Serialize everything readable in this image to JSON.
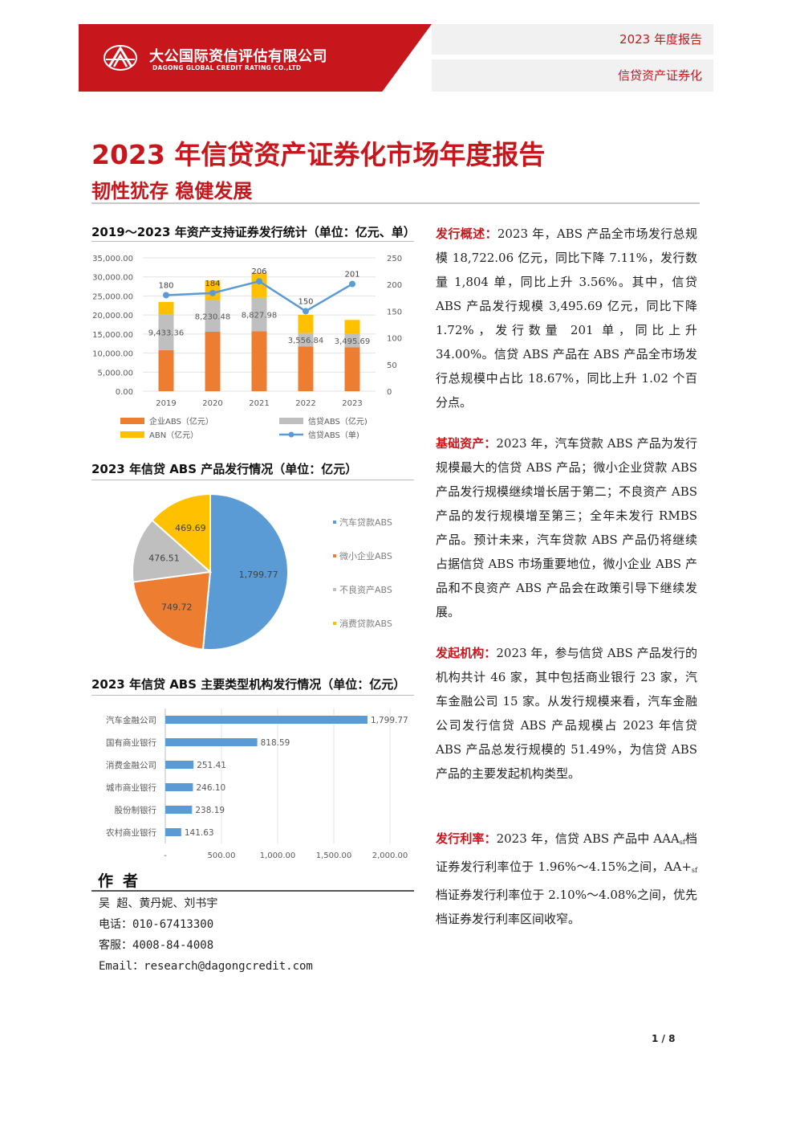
{
  "header": {
    "company_cn": "大公国际资信评估有限公司",
    "company_en": "DAGONG GLOBAL CREDIT RATING CO.,LTD",
    "report_type": "2023 年度报告",
    "category": "信贷资产证券化",
    "brand_color": "#c8161d"
  },
  "title": "2023 年信贷资产证券化市场年度报告",
  "subtitle": "韧性犹存  稳健发展",
  "sections": {
    "chart1_title": "2019～2023 年资产支持证券发行统计（单位：亿元、单）",
    "chart2_title": "2023 年信贷 ABS 产品发行情况（单位：亿元）",
    "chart3_title": "2023 年信贷 ABS 主要类型机构发行情况（单位：亿元）"
  },
  "chart_data": [
    {
      "type": "bar",
      "stacked": true,
      "categories": [
        "2019",
        "2020",
        "2021",
        "2022",
        "2023"
      ],
      "series": [
        {
          "name": "企业ABS（亿元）",
          "values": [
            10800,
            15600,
            15700,
            11700,
            11500
          ],
          "color": "#ed7d31"
        },
        {
          "name": "信贷ABS（亿元)",
          "values": [
            9433.36,
            8230.48,
            8827.98,
            3556.84,
            3495.69
          ],
          "color": "#bfbfbf",
          "labels": [
            "9,433.36",
            "8,230.48",
            "8,827.98",
            "3,556.84",
            "3,495.69"
          ]
        },
        {
          "name": "ABN（亿元）",
          "values": [
            3200,
            5200,
            6600,
            4800,
            3700
          ],
          "color": "#ffc000"
        },
        {
          "name": "信贷ABS（单)",
          "type": "line",
          "axis": "right",
          "values": [
            180,
            184,
            206,
            150,
            201
          ],
          "color": "#5b9bd5",
          "labels": [
            "180",
            "184",
            "206",
            "150",
            "201"
          ]
        }
      ],
      "y_ticks": [
        "35,000.00",
        "30,000.00",
        "25,000.00",
        "20,000.00",
        "15,000.00",
        "10,000.00",
        "5,000.00",
        "0.00"
      ],
      "ylim": [
        0,
        35000
      ],
      "y2_ticks": [
        "250",
        "200",
        "150",
        "100",
        "50",
        "0"
      ],
      "y2lim": [
        0,
        250
      ],
      "grid": true,
      "legend": "bottom"
    },
    {
      "type": "pie",
      "slices": [
        {
          "name": "汽车贷款ABS",
          "value": 1799.77,
          "label": "1,799.77",
          "color": "#5b9bd5"
        },
        {
          "name": "微小企业ABS",
          "value": 749.72,
          "label": "749.72",
          "color": "#ed7d31"
        },
        {
          "name": "不良资产ABS",
          "value": 476.51,
          "label": "476.51",
          "color": "#bfbfbf"
        },
        {
          "name": "消费贷款ABS",
          "value": 469.69,
          "label": "469.69",
          "color": "#ffc000"
        }
      ],
      "legend": "right"
    },
    {
      "type": "bar",
      "orientation": "horizontal",
      "categories": [
        "汽车金融公司",
        "国有商业银行",
        "消费金融公司",
        "城市商业银行",
        "股份制银行",
        "农村商业银行"
      ],
      "values": [
        1799.77,
        818.59,
        251.41,
        246.1,
        238.19,
        141.63
      ],
      "labels": [
        "1,799.77",
        "818.59",
        "251.41",
        "246.10",
        "238.19",
        "141.63"
      ],
      "x_ticks": [
        "-",
        "500.00",
        "1,000.00",
        "1,500.00",
        "2,000.00"
      ],
      "xlim": [
        0,
        2000
      ],
      "color": "#5b9bd5",
      "grid": true
    }
  ],
  "paragraphs": [
    {
      "lead": "发行概述：",
      "body": "2023 年，ABS 产品全市场发行总规模 18,722.06 亿元，同比下降 7.11%，发行数量 1,804 单，同比上升 3.56%。其中，信贷 ABS 产品发行规模 3,495.69 亿元，同比下降 1.72%，发行数量 201 单，同比上升 34.00%。信贷 ABS 产品在 ABS 产品全市场发行总规模中占比 18.67%，同比上升 1.02 个百分点。"
    },
    {
      "lead": "基础资产：",
      "body": "2023 年，汽车贷款 ABS 产品为发行规模最大的信贷 ABS 产品；微小企业贷款 ABS 产品发行规模继续增长居于第二；不良资产 ABS 产品的发行规模增至第三；全年未发行 RMBS 产品。预计未来，汽车贷款 ABS 产品仍将继续占据信贷 ABS 市场重要地位，微小企业 ABS 产品和不良资产 ABS 产品会在政策引导下继续发展。"
    },
    {
      "lead": "发起机构：",
      "body": "2023 年，参与信贷 ABS 产品发行的机构共计 46 家，其中包括商业银行 23 家，汽车金融公司 15 家。从发行规模来看，汽车金融公司发行信贷 ABS 产品规模占 2023 年信贷 ABS 产品总发行规模的 51.49%，为信贷 ABS 产品的主要发起机构类型。"
    },
    {
      "lead": "发行利率：",
      "body_a": "2023 年，信贷 ABS 产品中 AAA",
      "sub_a": "sf",
      "body_b": "档证券发行利率位于 1.96%～4.15%之间，AA+",
      "sub_b": "sf",
      "body_c": " 档证券发行利率位于 2.10%～4.08%之间，优先档证券发行利率区间收窄。"
    }
  ],
  "author": {
    "heading": "作者",
    "names": "吴 超、黄丹妮、刘书宇",
    "phone": "电话：010-67413300",
    "service": "客服：4008-84-4008",
    "email": "Email：research@dagongcredit.com"
  },
  "page": "1 / 8"
}
